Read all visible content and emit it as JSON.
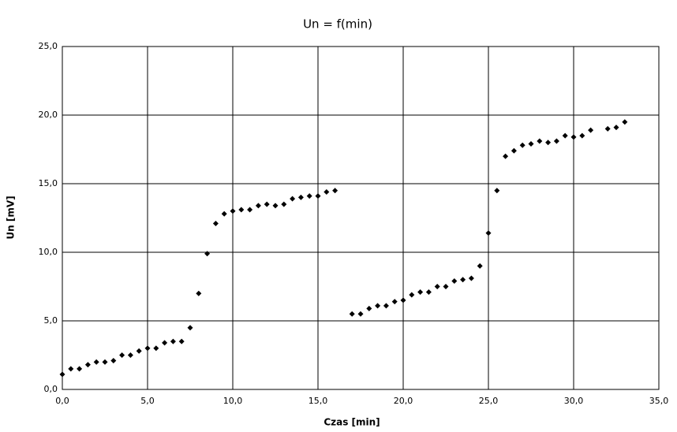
{
  "chart_data": {
    "type": "scatter",
    "title": "Un = f(min)",
    "x_label": "Czas [min]",
    "y_label": "Un [mV]",
    "x": [
      0,
      0.5,
      1,
      1.5,
      2,
      2.5,
      3,
      3.5,
      4,
      4.5,
      5,
      5.5,
      6,
      6.5,
      7,
      7.5,
      8,
      8.5,
      9,
      9.5,
      10,
      10.5,
      11,
      11.5,
      12,
      12.5,
      13,
      13.5,
      14,
      14.5,
      15,
      15.5,
      16,
      17,
      17.5,
      18,
      18.5,
      19,
      19.5,
      20,
      20.5,
      21,
      21.5,
      22,
      22.5,
      23,
      23.5,
      24,
      24.5,
      25,
      25.5,
      26,
      26.5,
      27,
      27.5,
      28,
      28.5,
      29,
      29.5,
      30,
      30.5,
      31,
      32,
      32.5,
      33
    ],
    "values": [
      1.1,
      1.5,
      1.5,
      1.8,
      2.0,
      2.0,
      2.1,
      2.5,
      2.5,
      2.8,
      3.0,
      3.0,
      3.4,
      3.5,
      3.5,
      4.5,
      7.0,
      9.9,
      12.1,
      12.8,
      13.0,
      13.1,
      13.1,
      13.4,
      13.5,
      13.4,
      13.5,
      13.9,
      14.0,
      14.1,
      14.1,
      14.4,
      14.5,
      5.5,
      5.5,
      5.9,
      6.1,
      6.1,
      6.4,
      6.5,
      6.9,
      7.1,
      7.1,
      7.5,
      7.5,
      7.9,
      8.0,
      8.1,
      9.0,
      11.4,
      14.5,
      17.0,
      17.4,
      17.8,
      17.9,
      18.1,
      18.0,
      18.1,
      18.5,
      18.4,
      18.5,
      18.9,
      19.0,
      19.1,
      19.5
    ],
    "color": "#000000",
    "xlim": [
      0,
      35
    ],
    "xticks": [
      {
        "value": 0,
        "label": "0,0"
      },
      {
        "value": 5,
        "label": "5,0"
      },
      {
        "value": 10,
        "label": "10,0"
      },
      {
        "value": 15,
        "label": "15,0"
      },
      {
        "value": 20,
        "label": "20,0"
      },
      {
        "value": 25,
        "label": "25,0"
      },
      {
        "value": 30,
        "label": "30,0"
      },
      {
        "value": 35,
        "label": "35,0"
      }
    ],
    "ylim": [
      0,
      25
    ],
    "yticks": [
      {
        "value": 0,
        "label": "0,0"
      },
      {
        "value": 5,
        "label": "5,0"
      },
      {
        "value": 10,
        "label": "10,0"
      },
      {
        "value": 15,
        "label": "15,0"
      },
      {
        "value": 20,
        "label": "20,0"
      },
      {
        "value": 25,
        "label": "25,0"
      }
    ],
    "grid": true
  }
}
